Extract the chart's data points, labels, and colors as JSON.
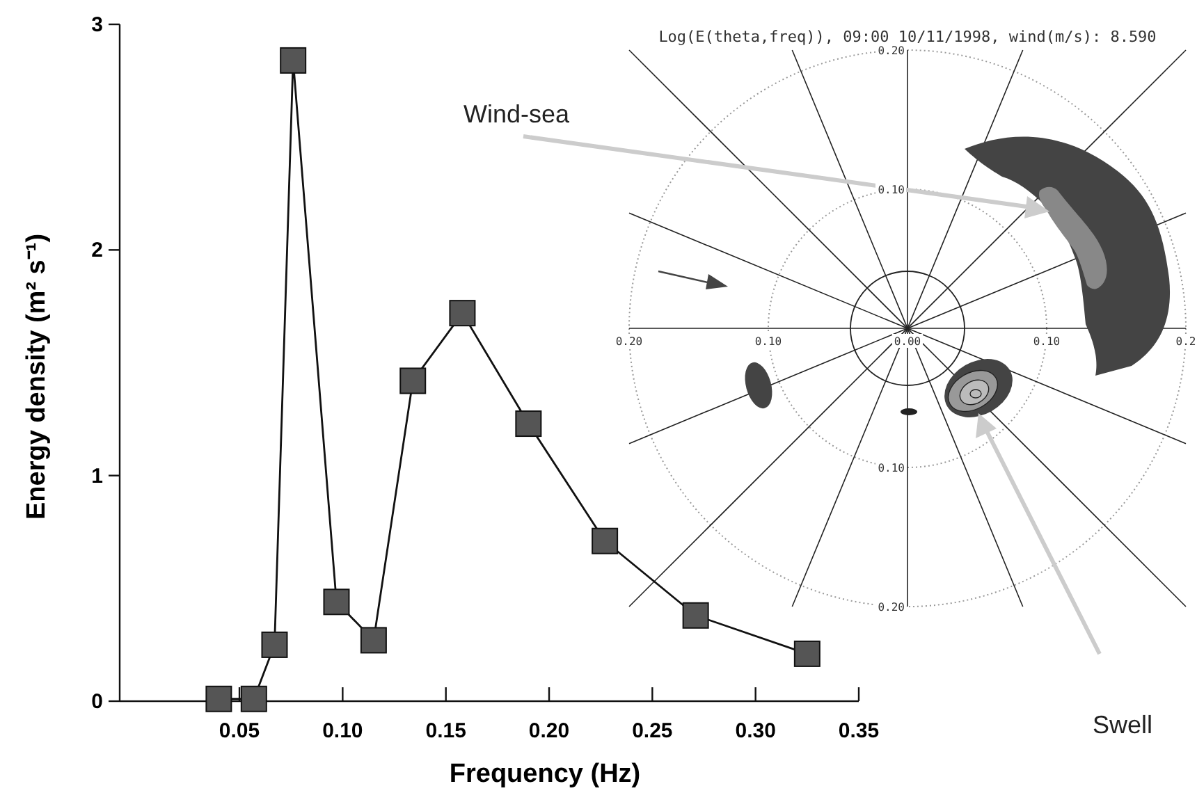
{
  "chart_data": [
    {
      "type": "line",
      "xlabel": "Frequency (Hz)",
      "ylabel": "Energy density (m² s⁻¹)",
      "x": [
        0.04,
        0.057,
        0.067,
        0.076,
        0.097,
        0.115,
        0.134,
        0.158,
        0.19,
        0.227,
        0.271,
        0.325
      ],
      "series": [
        {
          "color": "#555555",
          "values": [
            0.01,
            0.01,
            0.25,
            2.84,
            0.44,
            0.27,
            1.42,
            1.72,
            1.23,
            0.71,
            0.38,
            0.21
          ]
        }
      ],
      "xlim": [
        -0.008,
        0.35
      ],
      "ylim": [
        0,
        3
      ],
      "xticks": [
        {
          "value": 0.05,
          "label": "0.05"
        },
        {
          "value": 0.1,
          "label": "0.10"
        },
        {
          "value": 0.15,
          "label": "0.15"
        },
        {
          "value": 0.2,
          "label": "0.20"
        },
        {
          "value": 0.25,
          "label": "0.25"
        },
        {
          "value": 0.3,
          "label": "0.30"
        },
        {
          "value": 0.35,
          "label": "0.35"
        }
      ],
      "yticks": [
        0,
        1,
        2,
        3
      ],
      "marker": "square",
      "grid": false
    },
    {
      "type": "other",
      "title": "Log(E(theta,freq)), 09:00 10/11/1998,  wind(m/s): 8.590",
      "annotations": [
        "Wind-sea",
        "Swell",
        "0.20",
        "0.10",
        "0.00",
        "0.10",
        "0.2",
        "0.20",
        "0.10",
        "0.10",
        "0.20"
      ]
    }
  ]
}
